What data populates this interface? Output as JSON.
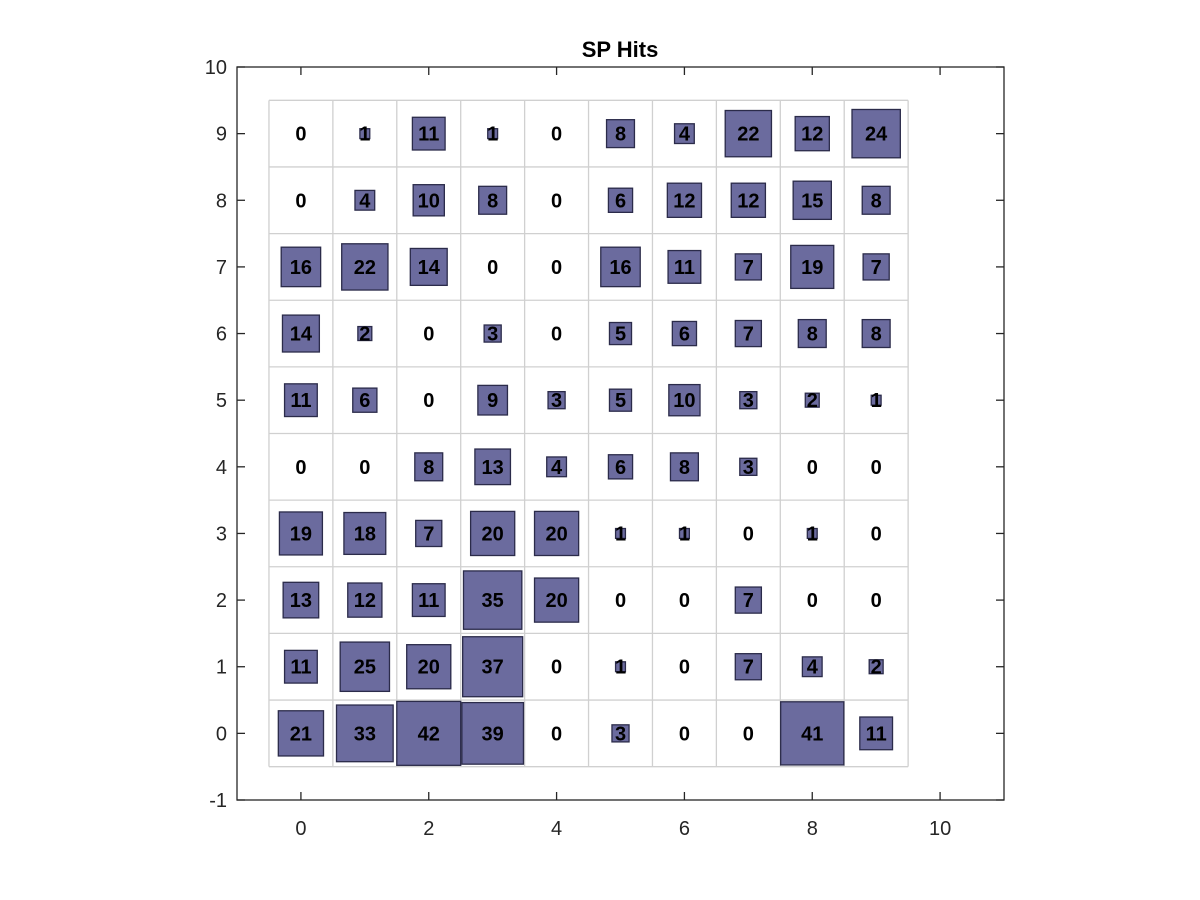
{
  "chart_data": {
    "type": "heatmap",
    "title": "SP Hits",
    "xlabel": "",
    "ylabel": "",
    "xlim": [
      -1,
      11
    ],
    "ylim": [
      -1,
      10
    ],
    "x_ticks": [
      "0",
      "2",
      "4",
      "6",
      "8",
      "10"
    ],
    "y_ticks": [
      "-1",
      "0",
      "1",
      "2",
      "3",
      "4",
      "5",
      "6",
      "7",
      "8",
      "9",
      "10"
    ],
    "grid_size": [
      10,
      10
    ],
    "max_hits": 42,
    "colors": {
      "box_fill": "#6b6b9e",
      "box_edge": "#2b2b4a",
      "grid": "#d0d0d0",
      "axis": "#262626"
    },
    "rows": [
      {
        "y": 9,
        "values": [
          0,
          1,
          11,
          1,
          0,
          8,
          4,
          22,
          12,
          24
        ]
      },
      {
        "y": 8,
        "values": [
          0,
          4,
          10,
          8,
          0,
          6,
          12,
          12,
          15,
          8
        ]
      },
      {
        "y": 7,
        "values": [
          16,
          22,
          14,
          0,
          0,
          16,
          11,
          7,
          19,
          7
        ]
      },
      {
        "y": 6,
        "values": [
          14,
          2,
          0,
          3,
          0,
          5,
          6,
          7,
          8,
          8
        ]
      },
      {
        "y": 5,
        "values": [
          11,
          6,
          0,
          9,
          3,
          5,
          10,
          3,
          2,
          1
        ]
      },
      {
        "y": 4,
        "values": [
          0,
          0,
          8,
          13,
          4,
          6,
          8,
          3,
          0,
          0
        ]
      },
      {
        "y": 3,
        "values": [
          19,
          18,
          7,
          20,
          20,
          1,
          1,
          0,
          1,
          0
        ]
      },
      {
        "y": 2,
        "values": [
          13,
          12,
          11,
          35,
          20,
          0,
          0,
          7,
          0,
          0
        ]
      },
      {
        "y": 1,
        "values": [
          11,
          25,
          20,
          37,
          0,
          1,
          0,
          7,
          4,
          2
        ]
      },
      {
        "y": 0,
        "values": [
          21,
          33,
          42,
          39,
          0,
          3,
          0,
          0,
          41,
          11
        ]
      }
    ]
  }
}
